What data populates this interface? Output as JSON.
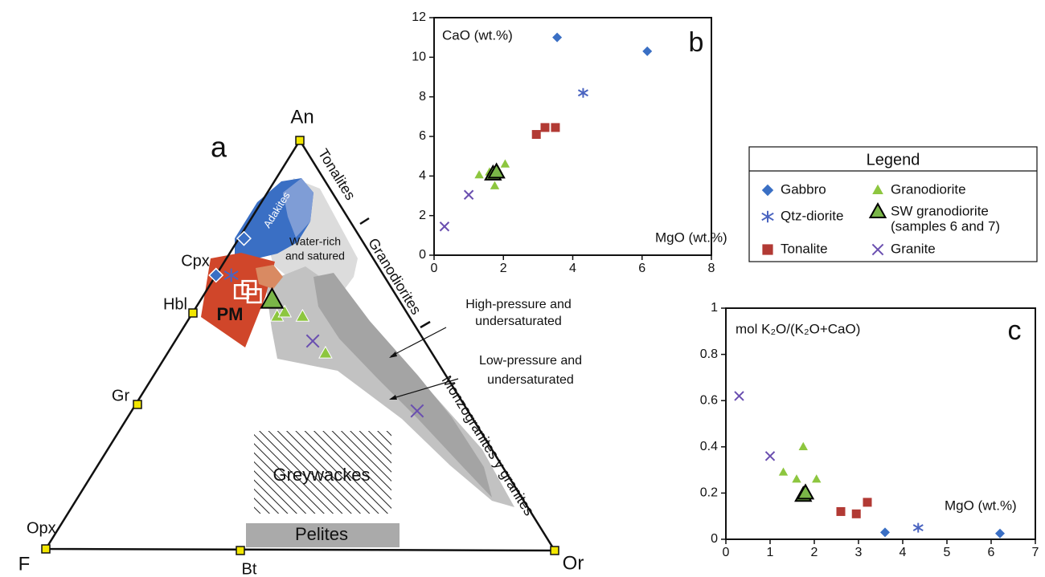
{
  "chart_data": [
    {
      "type": "ternary",
      "panel": "a",
      "vertices": {
        "top": "An",
        "left": "F",
        "right": "Or"
      },
      "minerals": [
        "Opx",
        "Bt",
        "Gr",
        "Hbl",
        "Cpx"
      ],
      "edge_labels": [
        "Tonalites",
        "Granodiorites",
        "Monzogranites y granites"
      ],
      "fields": [
        "Adakites",
        "Water-rich",
        "and satured",
        "PM",
        "High-pressure and",
        "undersaturated",
        "Low-pressure and",
        "undersaturated",
        "Greywackes",
        "Pelites"
      ],
      "series": [
        {
          "marker": "diamond",
          "color": "#3a6fc4",
          "outline": "#ffffff",
          "an": [
            67,
            76
          ],
          "or": [
            0,
            1
          ]
        },
        {
          "marker": "asterisk",
          "color": "#4a64c0",
          "an": [
            67
          ],
          "or": [
            3
          ]
        },
        {
          "marker": "square-open",
          "color": "#ffffff",
          "an": [
            64,
            62,
            63
          ],
          "or": [
            8,
            10,
            7
          ]
        },
        {
          "marker": "triangle",
          "color": "#8dc63f",
          "outline": "#ffffff",
          "an": [
            57,
            58,
            57,
            48
          ],
          "or": [
            17,
            18,
            22,
            31
          ]
        },
        {
          "marker": "triangle-large",
          "color": "#7ab648",
          "outline": "#000000",
          "an": [
            61
          ],
          "or": [
            14
          ]
        },
        {
          "marker": "x",
          "color": "#6a4fb0",
          "an": [
            51,
            34
          ],
          "or": [
            27,
            56
          ]
        }
      ]
    },
    {
      "type": "scatter",
      "panel": "b",
      "ylabel": "CaO (wt.%)",
      "xlabel": "MgO (wt.%)",
      "xlim": [
        0,
        8
      ],
      "xticks": [
        0,
        2,
        4,
        6,
        8
      ],
      "ylim": [
        0,
        12
      ],
      "yticks": [
        0,
        2,
        4,
        6,
        8,
        10,
        12
      ],
      "series": [
        {
          "name": "Gabbro",
          "marker": "diamond",
          "color": "#3a6fc4",
          "x": [
            3.55,
            6.15
          ],
          "values": [
            11.0,
            10.3
          ]
        },
        {
          "name": "Qtz-diorite",
          "marker": "asterisk",
          "color": "#4a64c0",
          "x": [
            4.3
          ],
          "values": [
            8.2
          ]
        },
        {
          "name": "Tonalite",
          "marker": "square",
          "color": "#b23a34",
          "x": [
            2.95,
            3.2,
            3.5
          ],
          "values": [
            6.1,
            6.45,
            6.45
          ]
        },
        {
          "name": "Granodiorite",
          "marker": "triangle",
          "color": "#8dc63f",
          "x": [
            1.3,
            1.6,
            1.75,
            2.05,
            1.85
          ],
          "values": [
            4.05,
            4.2,
            3.5,
            4.6,
            4.3
          ]
        },
        {
          "name": "SW granodiorite",
          "marker": "triangle-large",
          "color": "#7ab648",
          "outline": "#000000",
          "x": [
            1.7,
            1.8
          ],
          "values": [
            4.1,
            4.2
          ]
        },
        {
          "name": "Granite",
          "marker": "x",
          "color": "#6a4fb0",
          "x": [
            0.3,
            1.0
          ],
          "values": [
            1.45,
            3.05
          ]
        }
      ]
    },
    {
      "type": "scatter",
      "panel": "c",
      "ylabel": "mol K₂O/(K₂O+CaO)",
      "xlabel": "MgO (wt.%)",
      "xlim": [
        0,
        7
      ],
      "xticks": [
        0,
        1,
        2,
        3,
        4,
        5,
        6,
        7
      ],
      "ylim": [
        0,
        1
      ],
      "yticks": [
        0,
        0.2,
        0.4,
        0.6,
        0.8,
        1
      ],
      "series": [
        {
          "name": "Gabbro",
          "marker": "diamond",
          "color": "#3a6fc4",
          "x": [
            3.6,
            6.2
          ],
          "values": [
            0.03,
            0.025
          ]
        },
        {
          "name": "Qtz-diorite",
          "marker": "asterisk",
          "color": "#4a64c0",
          "x": [
            4.35
          ],
          "values": [
            0.05
          ]
        },
        {
          "name": "Tonalite",
          "marker": "square",
          "color": "#b23a34",
          "x": [
            2.6,
            2.95,
            3.2
          ],
          "values": [
            0.12,
            0.11,
            0.16
          ]
        },
        {
          "name": "Granodiorite",
          "marker": "triangle",
          "color": "#8dc63f",
          "x": [
            1.3,
            1.6,
            1.75,
            2.05
          ],
          "values": [
            0.29,
            0.26,
            0.4,
            0.26
          ]
        },
        {
          "name": "SW granodiorite",
          "marker": "triangle-large",
          "color": "#7ab648",
          "outline": "#000000",
          "x": [
            1.75,
            1.8
          ],
          "values": [
            0.19,
            0.2
          ]
        },
        {
          "name": "Granite",
          "marker": "x",
          "color": "#6a4fb0",
          "x": [
            0.3,
            1.0
          ],
          "values": [
            0.62,
            0.36
          ]
        }
      ]
    }
  ],
  "legend": {
    "title": "Legend",
    "note": "(samples 6 and 7)"
  }
}
